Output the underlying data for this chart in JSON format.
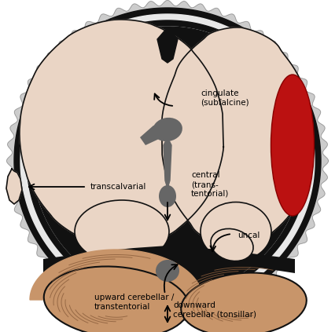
{
  "bg_color": "#ffffff",
  "brain_color": "#ead5c5",
  "brain_edge": "#111111",
  "cerebellum_color": "#c8956a",
  "cerebellum_edge": "#111111",
  "hematoma_color": "#bb1111",
  "dark_color": "#111111",
  "gray_color": "#666666",
  "skull_outer_color": "#cccccc",
  "skull_white_color": "#e8e8e8",
  "labels": {
    "cingulate": "cingulate\n(subfalcine)",
    "central": "central\n(trans-\ntentorial)",
    "transcalvarial": "transcalvarial",
    "uncal": "uncal",
    "upward": "upward cerebellar /\ntranstentorial",
    "downward": "downward\ncerebellar (tonsillar)"
  }
}
